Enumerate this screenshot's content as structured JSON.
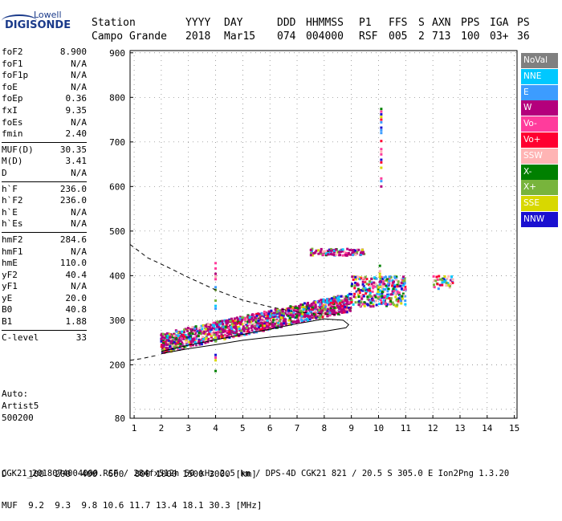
{
  "logo": {
    "line1": "Lowell",
    "line2": "DIGISONDE"
  },
  "header": {
    "columns": [
      {
        "label": "Station",
        "value": "Campo Grande"
      },
      {
        "label": "YYYY",
        "value": "2018"
      },
      {
        "label": "DAY",
        "value": "Mar15"
      },
      {
        "label": "DDD",
        "value": "074"
      },
      {
        "label": "HHMMSS",
        "value": "004000"
      },
      {
        "label": "P1",
        "value": "RSF"
      },
      {
        "label": "FFS",
        "value": "005"
      },
      {
        "label": "S",
        "value": "2"
      },
      {
        "label": "AXN",
        "value": "713"
      },
      {
        "label": "PPS",
        "value": "100"
      },
      {
        "label": "IGA",
        "value": "03+"
      },
      {
        "label": "PS",
        "value": "36"
      }
    ]
  },
  "params": {
    "group1": [
      {
        "name": "foF2",
        "value": "8.900"
      },
      {
        "name": "foF1",
        "value": "N/A"
      },
      {
        "name": "foF1p",
        "value": "N/A"
      },
      {
        "name": "foE",
        "value": "N/A"
      },
      {
        "name": "foEp",
        "value": "0.36"
      },
      {
        "name": "fxI",
        "value": "9.35"
      },
      {
        "name": "foEs",
        "value": "N/A"
      },
      {
        "name": "fmin",
        "value": "2.40"
      }
    ],
    "group2": [
      {
        "name": "MUF(D)",
        "value": "30.35"
      },
      {
        "name": "M(D)",
        "value": "3.41"
      },
      {
        "name": "D",
        "value": "N/A"
      }
    ],
    "group3": [
      {
        "name": "h`F",
        "value": "236.0"
      },
      {
        "name": "h`F2",
        "value": "236.0"
      },
      {
        "name": "h`E",
        "value": "N/A"
      },
      {
        "name": "h`Es",
        "value": "N/A"
      }
    ],
    "group4": [
      {
        "name": "hmF2",
        "value": "284.6"
      },
      {
        "name": "hmF1",
        "value": "N/A"
      },
      {
        "name": "hmE",
        "value": "110.0"
      },
      {
        "name": "yF2",
        "value": "40.4"
      },
      {
        "name": "yF1",
        "value": "N/A"
      },
      {
        "name": "yE",
        "value": "20.0"
      },
      {
        "name": "B0",
        "value": "40.8"
      },
      {
        "name": "B1",
        "value": "1.88"
      }
    ],
    "group5": [
      {
        "name": "C-level",
        "value": "33"
      }
    ]
  },
  "autoscaling": {
    "line1": "Auto:",
    "line2": "Artist5",
    "line3": "500200"
  },
  "distance_table": {
    "d_label": "D",
    "d_values": [
      "100",
      "200",
      "400",
      "600",
      "800",
      "1000",
      "1500",
      "3000"
    ],
    "d_unit": "[km]",
    "muf_label": "MUF",
    "muf_values": [
      "9.2",
      "9.3",
      "9.8",
      "10.6",
      "11.7",
      "13.4",
      "18.1",
      "30.3"
    ],
    "muf_unit": "[MHz]"
  },
  "footer": "CGK21_2018074004000.RSF / 284fx512h 50 kHz 2.5 km / DPS-4D CGK21 821 / 20.5 S 305.0 E Ion2Png 1.3.20",
  "legend": [
    {
      "label": "NoVal",
      "color": "#808080"
    },
    {
      "label": "NNE",
      "color": "#00c8ff"
    },
    {
      "label": "E",
      "color": "#3c9cff"
    },
    {
      "label": "W",
      "color": "#b4007c"
    },
    {
      "label": "Vo-",
      "color": "#ff3c9c"
    },
    {
      "label": "Vo+",
      "color": "#ff0030"
    },
    {
      "label": "SSW",
      "color": "#ffb4b4"
    },
    {
      "label": "X-",
      "color": "#008000"
    },
    {
      "label": "X+",
      "color": "#78b43c"
    },
    {
      "label": "SSE",
      "color": "#d8d800"
    },
    {
      "label": "NNW",
      "color": "#1a10d0"
    }
  ],
  "chart_data": {
    "type": "scatter",
    "title": "",
    "xlabel": "",
    "ylabel": "",
    "xlim": [
      0.85,
      15.1
    ],
    "ylim": [
      80,
      905
    ],
    "x_ticks": [
      1,
      2,
      3,
      4,
      5,
      6,
      7,
      8,
      9,
      10,
      11,
      12,
      13,
      14,
      15
    ],
    "y_ticks": [
      80,
      200,
      300,
      400,
      500,
      600,
      700,
      800,
      900
    ],
    "grid": true,
    "legend_position": "right",
    "series": [
      {
        "name": "dashed-curve",
        "style": "dashed",
        "x": [
          0.85,
          1.5,
          2.2,
          3.0,
          4.0,
          5.0,
          6.0,
          7.0,
          8.0,
          8.6
        ],
        "y": [
          470,
          440,
          420,
          396,
          368,
          345,
          330,
          318,
          314,
          312
        ]
      },
      {
        "name": "dashed-lower",
        "style": "dashed",
        "x": [
          0.85,
          1.3,
          1.9
        ],
        "y": [
          210,
          214,
          222
        ]
      },
      {
        "name": "profile-curve",
        "style": "solid",
        "x": [
          2.0,
          3.0,
          4.0,
          5.0,
          6.0,
          7.0,
          8.0,
          8.8,
          8.9,
          8.7,
          8.0,
          7.0,
          6.0,
          5.0,
          4.0,
          3.0,
          2.0
        ],
        "y": [
          225,
          236,
          245,
          255,
          262,
          268,
          275,
          283,
          290,
          300,
          303,
          292,
          280,
          268,
          256,
          244,
          230
        ]
      }
    ],
    "echo_regions": [
      {
        "x": [
          2.0,
          9.0
        ],
        "y_low": [
          225,
          320
        ],
        "y_high": [
          270,
          360
        ]
      },
      {
        "x": [
          7.5,
          9.5
        ],
        "y": [
          445,
          460
        ]
      },
      {
        "x": [
          9.0,
          11.0
        ],
        "y": [
          330,
          400
        ]
      },
      {
        "x": [
          12.0,
          12.8
        ],
        "y": [
          370,
          400
        ]
      }
    ]
  }
}
